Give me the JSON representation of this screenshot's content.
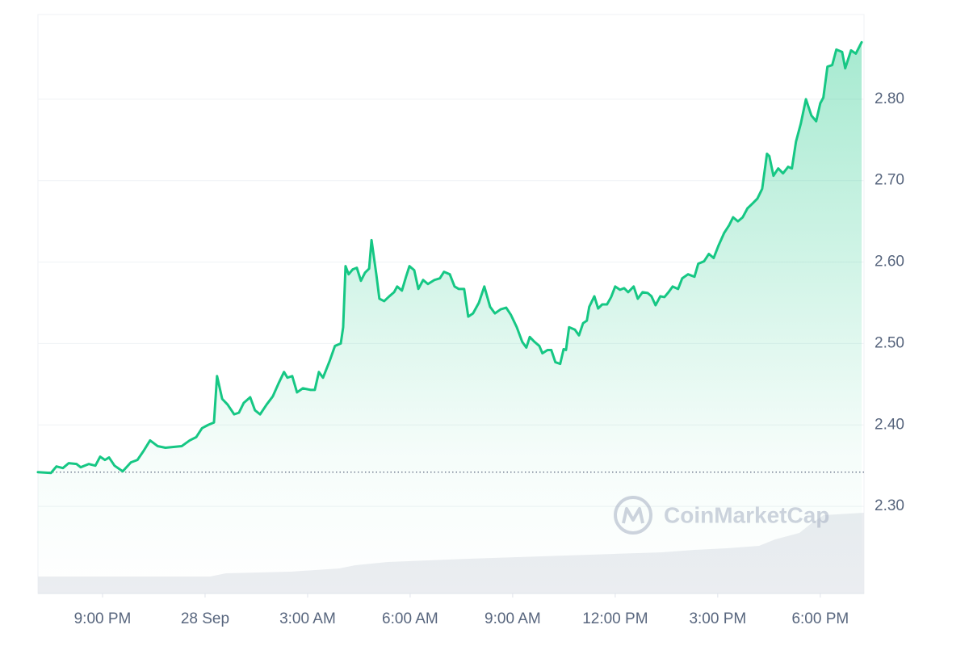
{
  "chart_data": {
    "type": "line",
    "color": "#16c784",
    "grid": true,
    "watermark": "CoinMarketCap",
    "reference_line": 2.342,
    "xlim": [
      19.11,
      43.28
    ],
    "xticks": [
      {
        "value": 21,
        "label": "9:00 PM"
      },
      {
        "value": 24,
        "label": "28 Sep"
      },
      {
        "value": 27,
        "label": "3:00 AM"
      },
      {
        "value": 30,
        "label": "6:00 AM"
      },
      {
        "value": 33,
        "label": "9:00 AM"
      },
      {
        "value": 36,
        "label": "12:00 PM"
      },
      {
        "value": 39,
        "label": "3:00 PM"
      },
      {
        "value": 42,
        "label": "6:00 PM"
      }
    ],
    "ylim": [
      2.193,
      2.904
    ],
    "yticks": [
      {
        "value": 2.3,
        "label": "2.30"
      },
      {
        "value": 2.4,
        "label": "2.40"
      },
      {
        "value": 2.5,
        "label": "2.50"
      },
      {
        "value": 2.6,
        "label": "2.60"
      },
      {
        "value": 2.7,
        "label": "2.70"
      },
      {
        "value": 2.8,
        "label": "2.80"
      }
    ],
    "x": [
      19.11,
      19.49,
      19.65,
      19.84,
      20.01,
      20.24,
      20.36,
      20.6,
      20.79,
      20.93,
      21.07,
      21.19,
      21.35,
      21.59,
      21.83,
      22.02,
      22.2,
      22.39,
      22.61,
      22.84,
      23.08,
      23.32,
      23.55,
      23.74,
      23.91,
      24.09,
      24.26,
      24.35,
      24.5,
      24.66,
      24.85,
      24.99,
      25.13,
      25.32,
      25.46,
      25.61,
      25.8,
      25.98,
      26.15,
      26.31,
      26.41,
      26.55,
      26.69,
      26.86,
      27.09,
      27.21,
      27.33,
      27.45,
      27.64,
      27.8,
      27.97,
      28.04,
      28.11,
      28.2,
      28.32,
      28.44,
      28.56,
      28.68,
      28.8,
      28.87,
      29.01,
      29.1,
      29.24,
      29.39,
      29.53,
      29.62,
      29.76,
      29.88,
      29.98,
      30.12,
      30.24,
      30.38,
      30.52,
      30.71,
      30.87,
      30.99,
      31.16,
      31.3,
      31.42,
      31.58,
      31.7,
      31.84,
      32.01,
      32.17,
      32.34,
      32.48,
      32.65,
      32.81,
      32.95,
      33.12,
      33.28,
      33.4,
      33.5,
      33.64,
      33.78,
      33.87,
      34.02,
      34.13,
      34.25,
      34.39,
      34.49,
      34.56,
      34.65,
      34.82,
      34.94,
      35.06,
      35.17,
      35.24,
      35.39,
      35.5,
      35.62,
      35.76,
      35.88,
      36.0,
      36.14,
      36.26,
      36.38,
      36.54,
      36.66,
      36.8,
      36.95,
      37.06,
      37.18,
      37.32,
      37.44,
      37.56,
      37.68,
      37.84,
      37.96,
      38.13,
      38.32,
      38.43,
      38.6,
      38.74,
      38.88,
      39.02,
      39.19,
      39.33,
      39.45,
      39.59,
      39.73,
      39.87,
      40.02,
      40.16,
      40.3,
      40.44,
      40.51,
      40.63,
      40.77,
      40.91,
      41.06,
      41.17,
      41.29,
      41.43,
      41.58,
      41.74,
      41.88,
      42.0,
      42.09,
      42.21,
      42.35,
      42.47,
      42.64,
      42.73,
      42.9,
      43.04,
      43.21
    ],
    "values": [
      2.342,
      2.341,
      2.349,
      2.347,
      2.353,
      2.352,
      2.348,
      2.352,
      2.35,
      2.361,
      2.357,
      2.36,
      2.35,
      2.343,
      2.354,
      2.357,
      2.368,
      2.381,
      2.374,
      2.372,
      2.373,
      2.374,
      2.381,
      2.385,
      2.396,
      2.4,
      2.403,
      2.46,
      2.432,
      2.425,
      2.413,
      2.415,
      2.427,
      2.434,
      2.418,
      2.413,
      2.425,
      2.435,
      2.451,
      2.465,
      2.458,
      2.46,
      2.44,
      2.445,
      2.443,
      2.443,
      2.465,
      2.458,
      2.478,
      2.497,
      2.5,
      2.52,
      2.595,
      2.585,
      2.591,
      2.593,
      2.577,
      2.587,
      2.592,
      2.627,
      2.585,
      2.555,
      2.552,
      2.558,
      2.563,
      2.57,
      2.565,
      2.582,
      2.595,
      2.59,
      2.567,
      2.578,
      2.573,
      2.578,
      2.58,
      2.588,
      2.585,
      2.57,
      2.567,
      2.567,
      2.533,
      2.537,
      2.55,
      2.57,
      2.545,
      2.537,
      2.542,
      2.544,
      2.535,
      2.52,
      2.502,
      2.495,
      2.508,
      2.502,
      2.497,
      2.488,
      2.492,
      2.492,
      2.477,
      2.475,
      2.493,
      2.492,
      2.52,
      2.517,
      2.51,
      2.525,
      2.528,
      2.545,
      2.558,
      2.543,
      2.548,
      2.548,
      2.557,
      2.57,
      2.566,
      2.568,
      2.563,
      2.57,
      2.555,
      2.563,
      2.562,
      2.558,
      2.547,
      2.558,
      2.557,
      2.563,
      2.57,
      2.567,
      2.58,
      2.585,
      2.582,
      2.598,
      2.601,
      2.61,
      2.605,
      2.62,
      2.636,
      2.645,
      2.655,
      2.65,
      2.655,
      2.666,
      2.672,
      2.678,
      2.69,
      2.733,
      2.73,
      2.706,
      2.715,
      2.709,
      2.717,
      2.715,
      2.748,
      2.77,
      2.8,
      2.78,
      2.773,
      2.795,
      2.802,
      2.84,
      2.842,
      2.861,
      2.858,
      2.838,
      2.86,
      2.856,
      2.87
    ]
  }
}
